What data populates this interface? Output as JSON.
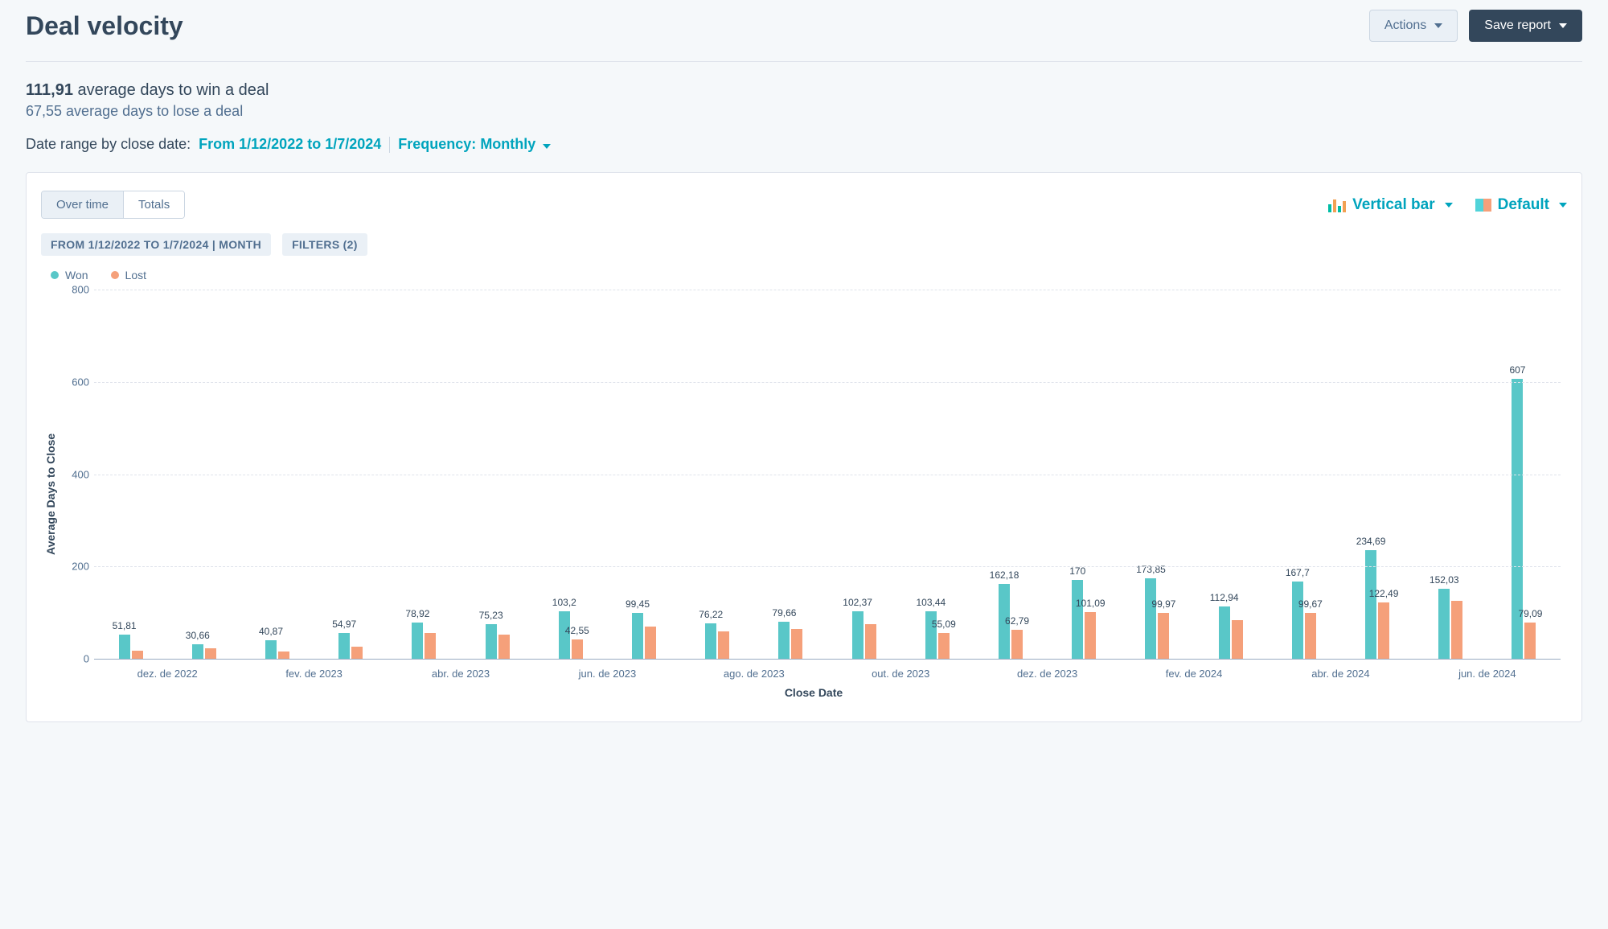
{
  "header": {
    "title": "Deal velocity",
    "actions_label": "Actions",
    "save_label": "Save report"
  },
  "summary": {
    "win_value": "111,91",
    "win_suffix": " average days to win a deal",
    "lose_text": "67,55 average days to lose a deal",
    "date_prefix": "Date range by close date: ",
    "date_range": "From 1/12/2022 to 1/7/2024",
    "freq_prefix": "Frequency: ",
    "freq_value": "Monthly"
  },
  "tabs": {
    "over_time": "Over time",
    "totals": "Totals"
  },
  "chips": {
    "range": "FROM 1/12/2022 TO 1/7/2024 | MONTH",
    "filters": "FILTERS (2)"
  },
  "controls": {
    "chart_type": "Vertical bar",
    "palette": "Default"
  },
  "legend": {
    "won": "Won",
    "lost": "Lost"
  },
  "colors": {
    "won": "#59c7c8",
    "lost": "#f5a07a",
    "grid": "#dfe3eb",
    "axis": "#99acc2",
    "link": "#00a4bd"
  },
  "chart": {
    "type": "bar",
    "ylabel": "Average Days to Close",
    "xlabel": "Close Date",
    "ylim": [
      0,
      800
    ],
    "ytick_step": 200,
    "yticks": [
      0,
      200,
      400,
      600,
      800
    ],
    "x_tick_labels": [
      "dez. de 2022",
      "fev. de 2023",
      "abr. de 2023",
      "jun. de 2023",
      "ago. de 2023",
      "out. de 2023",
      "dez. de 2023",
      "fev. de 2024",
      "abr. de 2024",
      "jun. de 2024"
    ],
    "categories": [
      "dez. de 2022",
      "jan. de 2023",
      "fev. de 2023",
      "mar. de 2023",
      "abr. de 2023",
      "mai. de 2023",
      "jun. de 2023",
      "jul. de 2023",
      "ago. de 2023",
      "set. de 2023",
      "out. de 2023",
      "nov. de 2023",
      "dez. de 2023",
      "jan. de 2024",
      "fev. de 2024",
      "mar. de 2024",
      "abr. de 2024",
      "mai. de 2024",
      "jun. de 2024",
      "jul. de 2024"
    ],
    "series": [
      {
        "name": "Won",
        "color": "#59c7c8",
        "values": [
          51.81,
          30.66,
          40.87,
          54.97,
          78.92,
          75.23,
          103.2,
          99.45,
          76.22,
          79.66,
          102.37,
          103.44,
          162.18,
          170,
          173.85,
          112.94,
          167.7,
          234.69,
          152.03,
          607
        ]
      },
      {
        "name": "Lost",
        "color": "#f5a07a",
        "values": [
          18,
          22,
          15,
          26,
          56,
          52,
          42.55,
          70,
          59,
          65,
          75,
          55.09,
          62.79,
          101.09,
          99.97,
          84,
          99.67,
          122.49,
          125,
          79.09
        ]
      }
    ],
    "data_labels": [
      {
        "won": "51,81",
        "lost": ""
      },
      {
        "won": "30,66",
        "lost": ""
      },
      {
        "won": "40,87",
        "lost": ""
      },
      {
        "won": "54,97",
        "lost": ""
      },
      {
        "won": "78,92",
        "lost": ""
      },
      {
        "won": "75,23",
        "lost": ""
      },
      {
        "won": "103,2",
        "lost": "42,55"
      },
      {
        "won": "99,45",
        "lost": ""
      },
      {
        "won": "76,22",
        "lost": ""
      },
      {
        "won": "79,66",
        "lost": ""
      },
      {
        "won": "102,37",
        "lost": ""
      },
      {
        "won": "103,44",
        "lost": "55,09"
      },
      {
        "won": "162,18",
        "lost": "62,79"
      },
      {
        "won": "170",
        "lost": "101,09"
      },
      {
        "won": "173,85",
        "lost": "99,97"
      },
      {
        "won": "112,94",
        "lost": ""
      },
      {
        "won": "167,7",
        "lost": "99,67"
      },
      {
        "won": "234,69",
        "lost": "122,49"
      },
      {
        "won": "152,03",
        "lost": ""
      },
      {
        "won": "607",
        "lost": "79,09"
      }
    ]
  }
}
